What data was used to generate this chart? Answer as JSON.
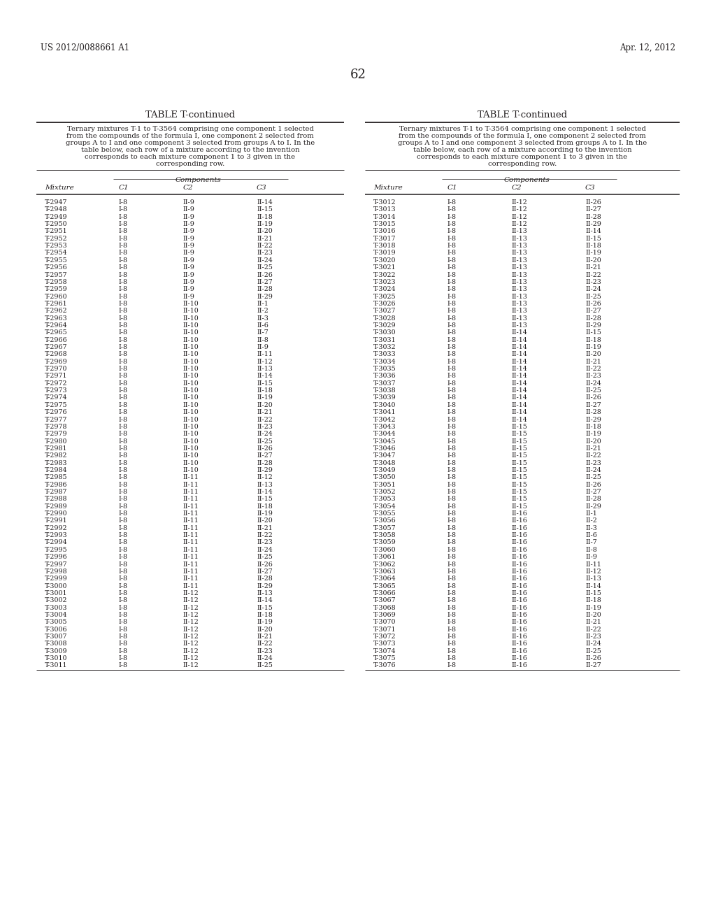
{
  "header_left": "US 2012/0088661 A1",
  "header_right": "Apr. 12, 2012",
  "page_number": "62",
  "table_title": "TABLE T-continued",
  "description_left": "Ternary mixtures T-1 to T-3564 comprising one component 1 selected\nfrom the compounds of the formula I, one component 2 selected from\ngroups A to I and one component 3 selected from groups A to I. In the\ntable below, each row of a mixture according to the invention\ncorresponds to each mixture component 1 to 3 given in the\ncorresponding row.",
  "description_right": "Ternary mixtures T-1 to T-3564 comprising one component 1 selected\nfrom the compounds of the formula I, one component 2 selected from\ngroups A to I and one component 3 selected from groups A to I. In the\ntable below, each row of a mixture according to the invention\ncorresponds to each mixture component 1 to 3 given in the\ncorresponding row.",
  "col_headers": [
    "Mixture",
    "C1",
    "C2",
    "C3"
  ],
  "left_data": [
    [
      "T-2947",
      "I-8",
      "II-9",
      "II-14"
    ],
    [
      "T-2948",
      "I-8",
      "II-9",
      "II-15"
    ],
    [
      "T-2949",
      "I-8",
      "II-9",
      "II-18"
    ],
    [
      "T-2950",
      "I-8",
      "II-9",
      "II-19"
    ],
    [
      "T-2951",
      "I-8",
      "II-9",
      "II-20"
    ],
    [
      "T-2952",
      "I-8",
      "II-9",
      "II-21"
    ],
    [
      "T-2953",
      "I-8",
      "II-9",
      "II-22"
    ],
    [
      "T-2954",
      "I-8",
      "II-9",
      "II-23"
    ],
    [
      "T-2955",
      "I-8",
      "II-9",
      "II-24"
    ],
    [
      "T-2956",
      "I-8",
      "II-9",
      "II-25"
    ],
    [
      "T-2957",
      "I-8",
      "II-9",
      "II-26"
    ],
    [
      "T-2958",
      "I-8",
      "II-9",
      "II-27"
    ],
    [
      "T-2959",
      "I-8",
      "II-9",
      "II-28"
    ],
    [
      "T-2960",
      "I-8",
      "II-9",
      "II-29"
    ],
    [
      "T-2961",
      "I-8",
      "II-10",
      "II-1"
    ],
    [
      "T-2962",
      "I-8",
      "II-10",
      "II-2"
    ],
    [
      "T-2963",
      "I-8",
      "II-10",
      "II-3"
    ],
    [
      "T-2964",
      "I-8",
      "II-10",
      "II-6"
    ],
    [
      "T-2965",
      "I-8",
      "II-10",
      "II-7"
    ],
    [
      "T-2966",
      "I-8",
      "II-10",
      "II-8"
    ],
    [
      "T-2967",
      "I-8",
      "II-10",
      "II-9"
    ],
    [
      "T-2968",
      "I-8",
      "II-10",
      "II-11"
    ],
    [
      "T-2969",
      "I-8",
      "II-10",
      "II-12"
    ],
    [
      "T-2970",
      "I-8",
      "II-10",
      "II-13"
    ],
    [
      "T-2971",
      "I-8",
      "II-10",
      "II-14"
    ],
    [
      "T-2972",
      "I-8",
      "II-10",
      "II-15"
    ],
    [
      "T-2973",
      "I-8",
      "II-10",
      "II-18"
    ],
    [
      "T-2974",
      "I-8",
      "II-10",
      "II-19"
    ],
    [
      "T-2975",
      "I-8",
      "II-10",
      "II-20"
    ],
    [
      "T-2976",
      "I-8",
      "II-10",
      "II-21"
    ],
    [
      "T-2977",
      "I-8",
      "II-10",
      "II-22"
    ],
    [
      "T-2978",
      "I-8",
      "II-10",
      "II-23"
    ],
    [
      "T-2979",
      "I-8",
      "II-10",
      "II-24"
    ],
    [
      "T-2980",
      "I-8",
      "II-10",
      "II-25"
    ],
    [
      "T-2981",
      "I-8",
      "II-10",
      "II-26"
    ],
    [
      "T-2982",
      "I-8",
      "II-10",
      "II-27"
    ],
    [
      "T-2983",
      "I-8",
      "II-10",
      "II-28"
    ],
    [
      "T-2984",
      "I-8",
      "II-10",
      "II-29"
    ],
    [
      "T-2985",
      "I-8",
      "II-11",
      "II-12"
    ],
    [
      "T-2986",
      "I-8",
      "II-11",
      "II-13"
    ],
    [
      "T-2987",
      "I-8",
      "II-11",
      "II-14"
    ],
    [
      "T-2988",
      "I-8",
      "II-11",
      "II-15"
    ],
    [
      "T-2989",
      "I-8",
      "II-11",
      "II-18"
    ],
    [
      "T-2990",
      "I-8",
      "II-11",
      "II-19"
    ],
    [
      "T-2991",
      "I-8",
      "II-11",
      "II-20"
    ],
    [
      "T-2992",
      "I-8",
      "II-11",
      "II-21"
    ],
    [
      "T-2993",
      "I-8",
      "II-11",
      "II-22"
    ],
    [
      "T-2994",
      "I-8",
      "II-11",
      "II-23"
    ],
    [
      "T-2995",
      "I-8",
      "II-11",
      "II-24"
    ],
    [
      "T-2996",
      "I-8",
      "II-11",
      "II-25"
    ],
    [
      "T-2997",
      "I-8",
      "II-11",
      "II-26"
    ],
    [
      "T-2998",
      "I-8",
      "II-11",
      "II-27"
    ],
    [
      "T-2999",
      "I-8",
      "II-11",
      "II-28"
    ],
    [
      "T-3000",
      "I-8",
      "II-11",
      "II-29"
    ],
    [
      "T-3001",
      "I-8",
      "II-12",
      "II-13"
    ],
    [
      "T-3002",
      "I-8",
      "II-12",
      "II-14"
    ],
    [
      "T-3003",
      "I-8",
      "II-12",
      "II-15"
    ],
    [
      "T-3004",
      "I-8",
      "II-12",
      "II-18"
    ],
    [
      "T-3005",
      "I-8",
      "II-12",
      "II-19"
    ],
    [
      "T-3006",
      "I-8",
      "II-12",
      "II-20"
    ],
    [
      "T-3007",
      "I-8",
      "II-12",
      "II-21"
    ],
    [
      "T-3008",
      "I-8",
      "II-12",
      "II-22"
    ],
    [
      "T-3009",
      "I-8",
      "II-12",
      "II-23"
    ],
    [
      "T-3010",
      "I-8",
      "II-12",
      "II-24"
    ],
    [
      "T-3011",
      "I-8",
      "II-12",
      "II-25"
    ]
  ],
  "right_data": [
    [
      "T-3012",
      "I-8",
      "II-12",
      "II-26"
    ],
    [
      "T-3013",
      "I-8",
      "II-12",
      "II-27"
    ],
    [
      "T-3014",
      "I-8",
      "II-12",
      "II-28"
    ],
    [
      "T-3015",
      "I-8",
      "II-12",
      "II-29"
    ],
    [
      "T-3016",
      "I-8",
      "II-13",
      "II-14"
    ],
    [
      "T-3017",
      "I-8",
      "II-13",
      "II-15"
    ],
    [
      "T-3018",
      "I-8",
      "II-13",
      "II-18"
    ],
    [
      "T-3019",
      "I-8",
      "II-13",
      "II-19"
    ],
    [
      "T-3020",
      "I-8",
      "II-13",
      "II-20"
    ],
    [
      "T-3021",
      "I-8",
      "II-13",
      "II-21"
    ],
    [
      "T-3022",
      "I-8",
      "II-13",
      "II-22"
    ],
    [
      "T-3023",
      "I-8",
      "II-13",
      "II-23"
    ],
    [
      "T-3024",
      "I-8",
      "II-13",
      "II-24"
    ],
    [
      "T-3025",
      "I-8",
      "II-13",
      "II-25"
    ],
    [
      "T-3026",
      "I-8",
      "II-13",
      "II-26"
    ],
    [
      "T-3027",
      "I-8",
      "II-13",
      "II-27"
    ],
    [
      "T-3028",
      "I-8",
      "II-13",
      "II-28"
    ],
    [
      "T-3029",
      "I-8",
      "II-13",
      "II-29"
    ],
    [
      "T-3030",
      "I-8",
      "II-14",
      "II-15"
    ],
    [
      "T-3031",
      "I-8",
      "II-14",
      "II-18"
    ],
    [
      "T-3032",
      "I-8",
      "II-14",
      "II-19"
    ],
    [
      "T-3033",
      "I-8",
      "II-14",
      "II-20"
    ],
    [
      "T-3034",
      "I-8",
      "II-14",
      "II-21"
    ],
    [
      "T-3035",
      "I-8",
      "II-14",
      "II-22"
    ],
    [
      "T-3036",
      "I-8",
      "II-14",
      "II-23"
    ],
    [
      "T-3037",
      "I-8",
      "II-14",
      "II-24"
    ],
    [
      "T-3038",
      "I-8",
      "II-14",
      "II-25"
    ],
    [
      "T-3039",
      "I-8",
      "II-14",
      "II-26"
    ],
    [
      "T-3040",
      "I-8",
      "II-14",
      "II-27"
    ],
    [
      "T-3041",
      "I-8",
      "II-14",
      "II-28"
    ],
    [
      "T-3042",
      "I-8",
      "II-14",
      "II-29"
    ],
    [
      "T-3043",
      "I-8",
      "II-15",
      "II-18"
    ],
    [
      "T-3044",
      "I-8",
      "II-15",
      "II-19"
    ],
    [
      "T-3045",
      "I-8",
      "II-15",
      "II-20"
    ],
    [
      "T-3046",
      "I-8",
      "II-15",
      "II-21"
    ],
    [
      "T-3047",
      "I-8",
      "II-15",
      "II-22"
    ],
    [
      "T-3048",
      "I-8",
      "II-15",
      "II-23"
    ],
    [
      "T-3049",
      "I-8",
      "II-15",
      "II-24"
    ],
    [
      "T-3050",
      "I-8",
      "II-15",
      "II-25"
    ],
    [
      "T-3051",
      "I-8",
      "II-15",
      "II-26"
    ],
    [
      "T-3052",
      "I-8",
      "II-15",
      "II-27"
    ],
    [
      "T-3053",
      "I-8",
      "II-15",
      "II-28"
    ],
    [
      "T-3054",
      "I-8",
      "II-15",
      "II-29"
    ],
    [
      "T-3055",
      "I-8",
      "II-16",
      "II-1"
    ],
    [
      "T-3056",
      "I-8",
      "II-16",
      "II-2"
    ],
    [
      "T-3057",
      "I-8",
      "II-16",
      "II-3"
    ],
    [
      "T-3058",
      "I-8",
      "II-16",
      "II-6"
    ],
    [
      "T-3059",
      "I-8",
      "II-16",
      "II-7"
    ],
    [
      "T-3060",
      "I-8",
      "II-16",
      "II-8"
    ],
    [
      "T-3061",
      "I-8",
      "II-16",
      "II-9"
    ],
    [
      "T-3062",
      "I-8",
      "II-16",
      "II-11"
    ],
    [
      "T-3063",
      "I-8",
      "II-16",
      "II-12"
    ],
    [
      "T-3064",
      "I-8",
      "II-16",
      "II-13"
    ],
    [
      "T-3065",
      "I-8",
      "II-16",
      "II-14"
    ],
    [
      "T-3066",
      "I-8",
      "II-16",
      "II-15"
    ],
    [
      "T-3067",
      "I-8",
      "II-16",
      "II-18"
    ],
    [
      "T-3068",
      "I-8",
      "II-16",
      "II-19"
    ],
    [
      "T-3069",
      "I-8",
      "II-16",
      "II-20"
    ],
    [
      "T-3070",
      "I-8",
      "II-16",
      "II-21"
    ],
    [
      "T-3071",
      "I-8",
      "II-16",
      "II-22"
    ],
    [
      "T-3072",
      "I-8",
      "II-16",
      "II-23"
    ],
    [
      "T-3073",
      "I-8",
      "II-16",
      "II-24"
    ],
    [
      "T-3074",
      "I-8",
      "II-16",
      "II-25"
    ],
    [
      "T-3075",
      "I-8",
      "II-16",
      "II-26"
    ],
    [
      "T-3076",
      "I-8",
      "II-16",
      "II-27"
    ]
  ],
  "background_color": "#ffffff",
  "text_color": "#231f20",
  "data_font_size": 6.8,
  "header_font_size": 8.5,
  "table_title_font_size": 9.5,
  "desc_font_size": 7.2,
  "col_header_font_size": 7.5,
  "components_font_size": 7.5,
  "page_num_font_size": 13
}
